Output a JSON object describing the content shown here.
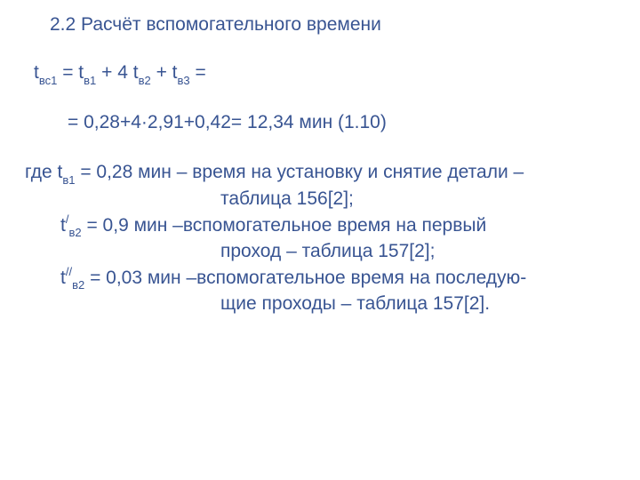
{
  "colors": {
    "text": "#385492",
    "background": "#ffffff"
  },
  "font": {
    "family": "Arial",
    "size_pt": 21
  },
  "heading": "2.2 Расчёт вспомогательного времени",
  "formula": {
    "t_vs1_prefix": "t",
    "t_vs1_sub": "вс1",
    "eq1": " = t",
    "t_v1_sub": "в1",
    "plus4": " + 4 t",
    "t_v2_sub": "в2",
    "plus": " + t",
    "t_v3_sub": "в3",
    "tail": " ="
  },
  "result": {
    "text": "= 0,28+4·2,91+0,42= 12,34 мин   (1.10)"
  },
  "desc": {
    "l1a": "где t",
    "l1_sub": "в1",
    "l1b": " = 0,28 мин – время на установку и снятие детали –",
    "l1c": "таблица 156[2];",
    "l2a": "t",
    "l2_sup": "/",
    "l2_sub": "в2",
    "l2b": " = 0,9 мин –вспомогательное время на первый",
    "l2c": "проход – таблица 157[2];",
    "l3a": "t",
    "l3_sup": "//",
    "l3_sub": "в2",
    "l3b": " = 0,03 мин –вспомогательное время на последую-",
    "l3c": "щие проходы – таблица 157[2]."
  }
}
